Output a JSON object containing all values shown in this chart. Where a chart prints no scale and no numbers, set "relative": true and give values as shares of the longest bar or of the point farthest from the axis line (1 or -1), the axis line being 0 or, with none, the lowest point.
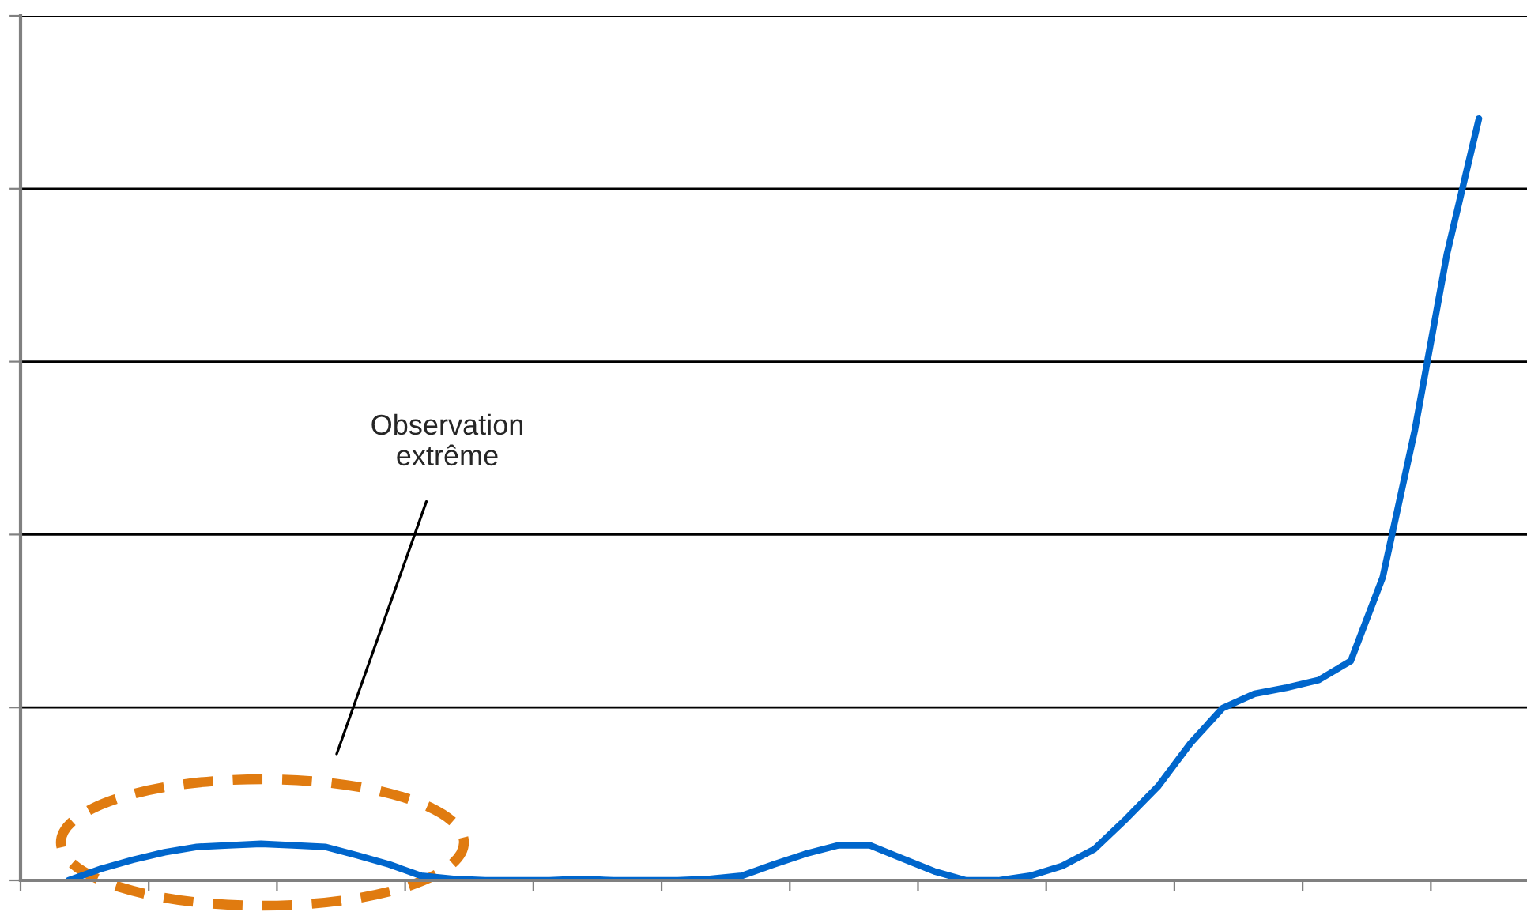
{
  "chart_data": {
    "type": "line",
    "relative": true,
    "grid": "y",
    "legend": false,
    "marker": "none",
    "line_style": "solid",
    "categories": [
      null,
      null,
      null,
      null,
      null,
      null,
      null,
      null,
      null,
      null,
      null,
      null,
      null,
      null,
      null,
      null,
      null,
      null,
      null,
      null,
      null,
      null,
      null,
      null,
      null,
      null,
      null,
      null,
      null,
      null,
      null,
      null,
      null,
      null,
      null,
      null,
      null,
      null,
      null,
      null,
      null,
      null,
      null,
      null,
      null,
      null,
      null
    ],
    "series": [
      {
        "color": "#0066cc",
        "values": [
          null,
          0,
          0.015,
          0.027,
          0.037,
          0.044,
          0.046,
          0.048,
          0.046,
          0.044,
          0.033,
          0.021,
          0.006,
          0.002,
          0,
          0,
          0,
          0.002,
          0,
          0,
          0,
          0.002,
          0.006,
          0.021,
          0.035,
          0.046,
          0.046,
          0.029,
          0.012,
          0,
          0,
          0.006,
          0.019,
          0.041,
          0.081,
          0.124,
          0.18,
          0.226,
          0.245,
          0.253,
          0.263,
          0.288,
          0.398,
          0.591,
          0.822,
          1,
          null
        ]
      }
    ],
    "annotations": [
      "Observation\nextrême"
    ]
  }
}
